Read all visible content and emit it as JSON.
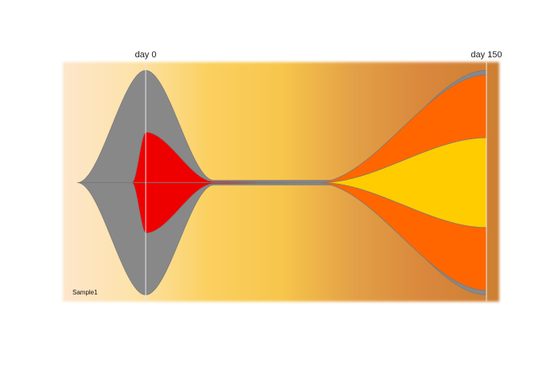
{
  "chart_data": {
    "type": "area",
    "subtype": "fish-plot",
    "title": "",
    "xlabel": "",
    "ylabel": "",
    "timepoints": [
      {
        "label": "day 0",
        "day": 0
      },
      {
        "label": "day 150",
        "day": 150
      }
    ],
    "xlim": [
      -30,
      150
    ],
    "sample_label": "Sample1",
    "background_gradient": [
      "#fde6cc",
      "#fde2a8",
      "#fbd060",
      "#f7c64c",
      "#e3a046",
      "#d9873c",
      "#cd7f32"
    ],
    "divider_color": "#e8e8e8",
    "clone_outline_color": "#7a7a7a",
    "clones": [
      {
        "id": 1,
        "parent": 0,
        "color": "#888888",
        "fractions": [
          {
            "day": -30,
            "value": 0
          },
          {
            "day": 0,
            "value": 100
          },
          {
            "day": 30,
            "value": 2
          },
          {
            "day": 80,
            "value": 2
          },
          {
            "day": 150,
            "value": 100
          }
        ]
      },
      {
        "id": 2,
        "parent": 1,
        "color": "#ee0000",
        "fractions": [
          {
            "day": -6,
            "value": 0
          },
          {
            "day": 0,
            "value": 45
          },
          {
            "day": 30,
            "value": 1
          },
          {
            "day": 80,
            "value": 0
          },
          {
            "day": 150,
            "value": 0
          }
        ]
      },
      {
        "id": 3,
        "parent": 1,
        "color": "#ff6600",
        "fractions": [
          {
            "day": -30,
            "value": 0
          },
          {
            "day": 75,
            "value": 0
          },
          {
            "day": 150,
            "value": 96
          }
        ]
      },
      {
        "id": 4,
        "parent": 3,
        "color": "#ffcc00",
        "fractions": [
          {
            "day": -30,
            "value": 0
          },
          {
            "day": 77,
            "value": 0
          },
          {
            "day": 150,
            "value": 40
          }
        ]
      }
    ]
  }
}
